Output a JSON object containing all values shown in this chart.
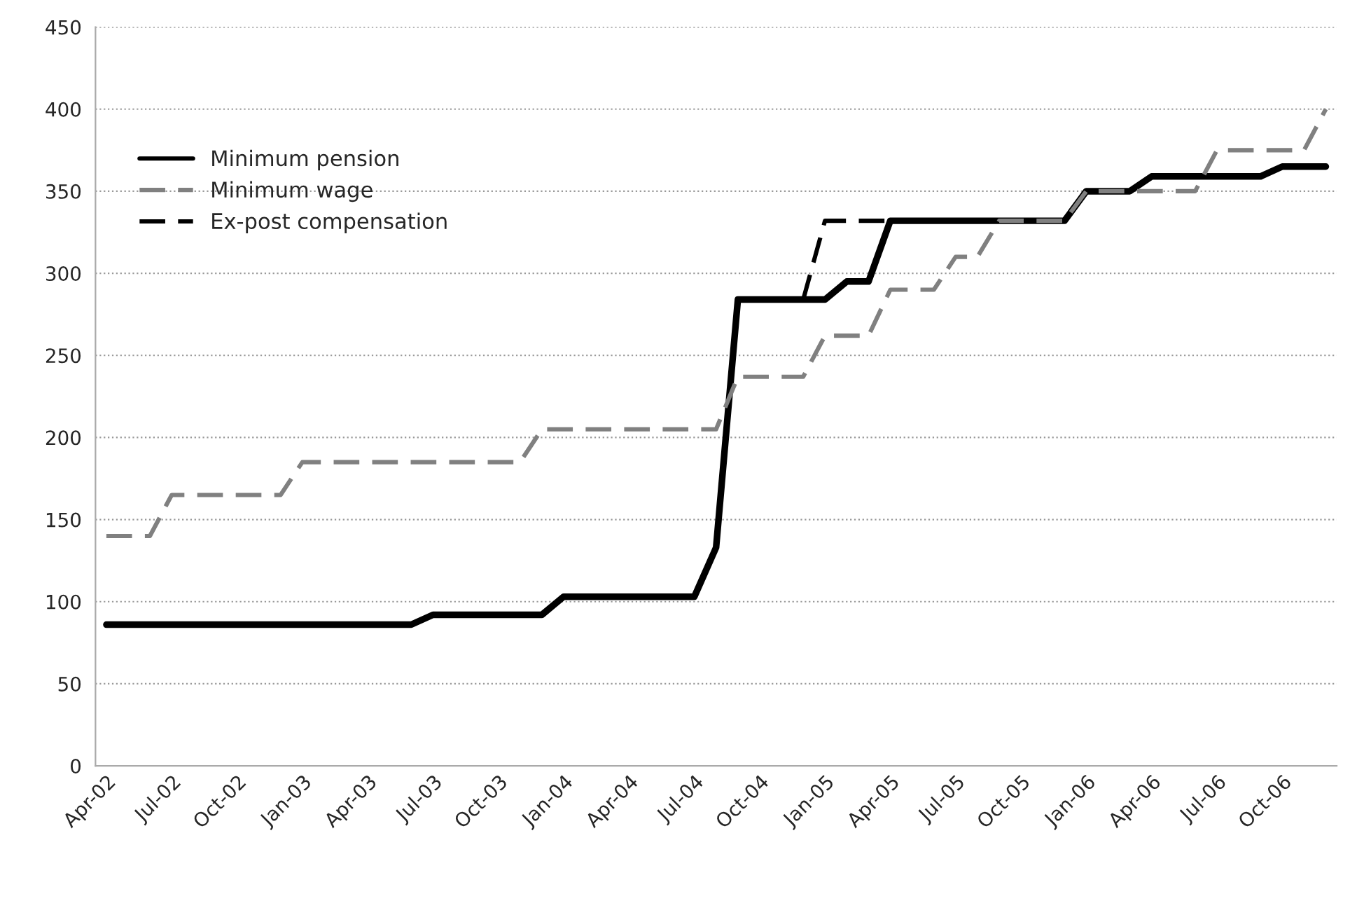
{
  "chart_data": {
    "type": "line",
    "categories": [
      "Apr-02",
      null,
      null,
      "Jul-02",
      null,
      null,
      "Oct-02",
      null,
      null,
      "Jan-03",
      null,
      null,
      "Apr-03",
      null,
      null,
      "Jul-03",
      null,
      null,
      "Oct-03",
      null,
      null,
      "Jan-04",
      null,
      null,
      "Apr-04",
      null,
      null,
      "Jul-04",
      null,
      null,
      "Oct-04",
      null,
      null,
      "Jan-05",
      null,
      null,
      "Apr-05",
      null,
      null,
      "Jul-05",
      null,
      null,
      "Oct-05",
      null,
      null,
      "Jan-06",
      null,
      null,
      "Apr-06",
      null,
      null,
      "Jul-06",
      null,
      null,
      "Oct-06",
      null,
      null
    ],
    "series": [
      {
        "name": "Minimum pension",
        "color": "#000000",
        "line_style": "solid",
        "values": [
          86,
          86,
          86,
          86,
          86,
          86,
          86,
          86,
          86,
          86,
          86,
          86,
          86,
          86,
          86,
          92,
          92,
          92,
          92,
          92,
          92,
          103,
          103,
          103,
          103,
          103,
          103,
          103,
          133,
          284,
          284,
          284,
          284,
          284,
          295,
          295,
          332,
          332,
          332,
          332,
          332,
          332,
          332,
          332,
          332,
          350,
          350,
          350,
          359,
          359,
          359,
          359,
          359,
          359,
          365,
          365,
          365
        ]
      },
      {
        "name": "Minimum wage",
        "color": "#808080",
        "line_style": "dashed",
        "values": [
          140,
          140,
          140,
          165,
          165,
          165,
          165,
          165,
          165,
          185,
          185,
          185,
          185,
          185,
          185,
          185,
          185,
          185,
          185,
          185,
          205,
          205,
          205,
          205,
          205,
          205,
          205,
          205,
          205,
          237,
          237,
          237,
          237,
          262,
          262,
          262,
          290,
          290,
          290,
          310,
          310,
          332,
          332,
          332,
          332,
          350,
          350,
          350,
          350,
          350,
          350,
          375,
          375,
          375,
          375,
          375,
          400
        ]
      },
      {
        "name": "Ex-post compensation",
        "color": "#000000",
        "line_style": "dashed",
        "values": [
          null,
          null,
          null,
          null,
          null,
          null,
          null,
          null,
          null,
          null,
          null,
          null,
          null,
          null,
          null,
          null,
          null,
          null,
          null,
          null,
          null,
          null,
          null,
          null,
          null,
          null,
          null,
          null,
          null,
          null,
          null,
          null,
          284,
          332,
          332,
          332,
          332,
          null,
          null,
          null,
          null,
          null,
          null,
          null,
          null,
          null,
          null,
          null,
          null,
          null,
          null,
          null,
          null,
          null,
          null,
          null,
          null
        ]
      }
    ],
    "ylim": [
      0,
      450
    ],
    "yticks": [
      0,
      50,
      100,
      150,
      200,
      250,
      300,
      350,
      400,
      450
    ],
    "grid": "y",
    "legend": "top left"
  }
}
